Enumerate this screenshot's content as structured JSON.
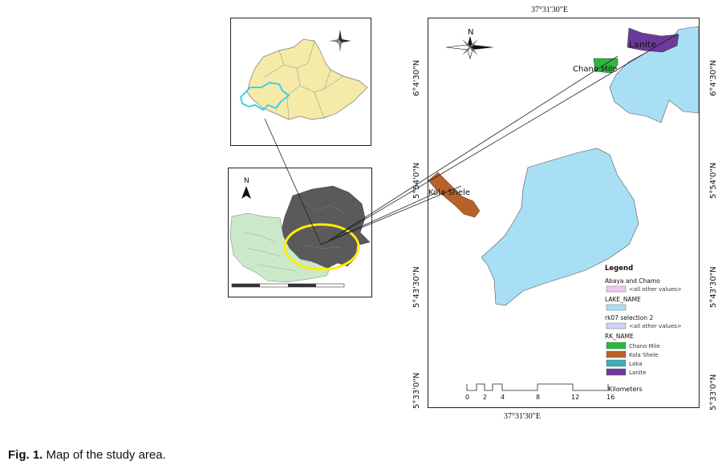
{
  "caption": {
    "label": "Fig. 1.",
    "text": "Map of the study area."
  },
  "coords": {
    "top": "37°31'30\"E",
    "bottom": "37°31'30\"E",
    "left": [
      "6°4'30\"N",
      "5°54'0\"N",
      "5°43'30\"N",
      "5°33'0\"N"
    ],
    "right": [
      "6°4'30\"N",
      "5°54'0\"N",
      "5°43'30\"N",
      "5°33'0\"N"
    ]
  },
  "north_label": "N",
  "place_labels": {
    "lanite": "Lanite",
    "chano": "Chano Mile",
    "kola": "Kola Shele"
  },
  "legend": {
    "title": "Legend",
    "layer1": "Abaya and Chamo",
    "layer1_sub": "<all other values>",
    "layer2": "LAKE_NAME",
    "layer3": "rk07 selection 2",
    "layer3_sub": "<all other values>",
    "layer4": "RK_NAME",
    "items": [
      {
        "label": "Chano Mile",
        "color": "#2db83d"
      },
      {
        "label": "Kola Shele",
        "color": "#b8612a"
      },
      {
        "label": "Laka",
        "color": "#3bb0b8"
      },
      {
        "label": "Lanite",
        "color": "#6b3a9a"
      }
    ],
    "swatch_layer1": "#f0c8f0",
    "swatch_lake": "#a8dff5",
    "swatch_layer3": "#cfd3f5"
  },
  "scale": {
    "ticks": [
      "0",
      "2",
      "4",
      "8",
      "12",
      "16"
    ],
    "unit": "Kilometers"
  },
  "colors": {
    "lake": "#a8dff5",
    "ethiopia": "#f5eaa8",
    "outline_cyan": "#3cd0f0",
    "zone_gray": "#5a5a5a",
    "zone_green": "#cbe8cb",
    "circle": "#ffee00"
  }
}
